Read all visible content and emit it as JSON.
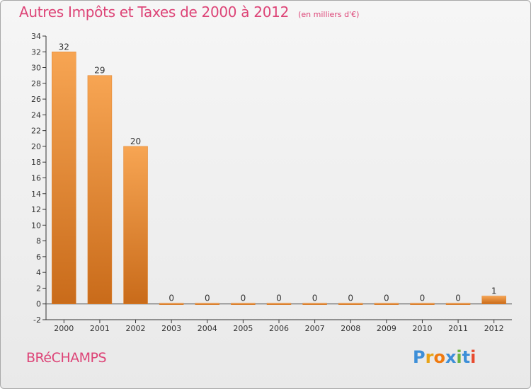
{
  "chart_data": {
    "type": "bar",
    "title": "Autres Impôts et Taxes de 2000 à 2012",
    "subtitle": "(en milliers d'€)",
    "categories": [
      "2000",
      "2001",
      "2002",
      "2003",
      "2004",
      "2005",
      "2006",
      "2007",
      "2008",
      "2009",
      "2010",
      "2011",
      "2012"
    ],
    "values": [
      32,
      29,
      20,
      0,
      0,
      0,
      0,
      0,
      0,
      0,
      0,
      0,
      1
    ],
    "value_labels": [
      "32",
      "29",
      "20",
      "0",
      "0",
      "0",
      "0",
      "0",
      "0",
      "0",
      "0",
      "0",
      "1"
    ],
    "ylim": [
      -2,
      34
    ],
    "yticks": [
      -2,
      0,
      2,
      4,
      6,
      8,
      10,
      12,
      14,
      16,
      18,
      20,
      22,
      24,
      26,
      28,
      30,
      32,
      34
    ],
    "xlabel": "",
    "ylabel": "",
    "grid": false,
    "bar_color": "#f0943a",
    "bar_dark_color": "#c96b1a"
  },
  "commune": "BRéCHAMPS",
  "logo": {
    "letters": [
      "P",
      "r",
      "o",
      "x",
      "i",
      "t",
      "i"
    ],
    "colors": [
      "#3d8fd8",
      "#e8a316",
      "#f07a10",
      "#3d8fd8",
      "#6cb33e",
      "#3d8fd8",
      "#e84a2e"
    ]
  },
  "colors": {
    "accent": "#dd4477"
  }
}
